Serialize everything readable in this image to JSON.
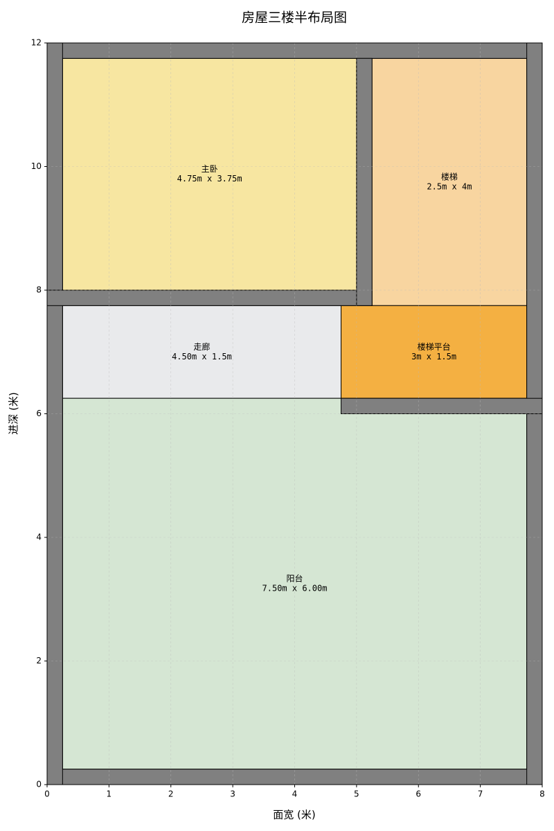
{
  "chart_data": {
    "type": "floorplan",
    "title": "房屋三楼半布局图",
    "xlabel": "面宽 (米)",
    "ylabel": "进深 (米)",
    "xlim": [
      0,
      8
    ],
    "ylim": [
      0,
      12
    ],
    "xticks": [
      0,
      1,
      2,
      3,
      4,
      5,
      6,
      7,
      8
    ],
    "yticks": [
      0,
      2,
      4,
      6,
      8,
      10,
      12
    ],
    "grid": true,
    "walls": {
      "color": "#808080",
      "rects": [
        [
          0,
          0,
          8,
          0.25
        ],
        [
          0,
          11.75,
          8,
          0.25
        ],
        [
          0,
          0,
          0.25,
          12
        ],
        [
          7.75,
          0,
          0.25,
          12
        ],
        [
          0,
          7.75,
          5.25,
          0.25
        ],
        [
          5,
          7.75,
          0.25,
          4
        ],
        [
          4.75,
          6,
          3.25,
          0.25
        ]
      ]
    },
    "rooms": [
      {
        "name": "主卧",
        "label": "4.75m x 3.75m",
        "x": 0.25,
        "y": 8,
        "width": 4.75,
        "height": 3.75,
        "color": "#f7e6a1"
      },
      {
        "name": "楼梯",
        "label": "2.5m x 4m",
        "x": 5.25,
        "y": 7.75,
        "width": 2.5,
        "height": 4,
        "color": "#f8d5a0"
      },
      {
        "name": "走廊",
        "label": "4.50m x 1.5m",
        "x": 0.25,
        "y": 6.25,
        "width": 4.5,
        "height": 1.5,
        "color": "#e9eaec"
      },
      {
        "name": "楼梯平台",
        "label": "3m x 1.5m",
        "x": 4.75,
        "y": 6.25,
        "width": 3,
        "height": 1.5,
        "color": "#f4b042"
      },
      {
        "name": "阳台",
        "label": "7.50m x 6.00m",
        "x": 0.25,
        "y": 0.25,
        "width": 7.5,
        "height": 6,
        "color": "#d5e6d3"
      }
    ]
  }
}
